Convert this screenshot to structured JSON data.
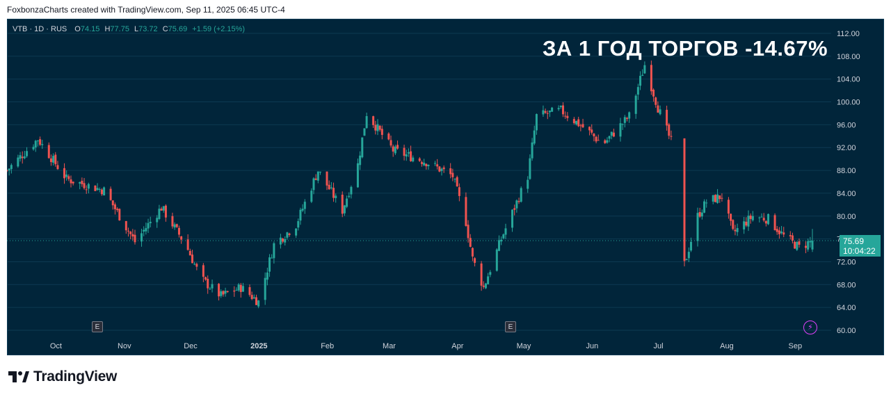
{
  "caption": "FoxbonzaCharts created with TradingView.com, Sep 11, 2025 06:45 UTC-4",
  "legend": {
    "symbol": "VTB · 1D · RUS",
    "open_label": "O",
    "open": "74.15",
    "high_label": "H",
    "high": "77.75",
    "low_label": "L",
    "low": "73.72",
    "close_label": "C",
    "close": "75.69",
    "change": "+1.59 (+2.15%)"
  },
  "headline": "ЗА 1 ГОД ТОРГОВ -14.67%",
  "price_tag": {
    "price": "75.69",
    "countdown": "10:04:22"
  },
  "earnings_marker": "E",
  "footer": {
    "brand": "TradingView"
  },
  "colors": {
    "up": "#26a69a",
    "down": "#ef5350",
    "background": "#01253a",
    "grid": "#0d3a52"
  },
  "icons": [
    "earnings-icon",
    "lightning-icon",
    "tradingview-logo-icon"
  ],
  "chart_data": {
    "type": "candlestick",
    "title": "",
    "xlabel": "",
    "ylabel": "",
    "ylim": [
      60,
      113
    ],
    "yticks": [
      "112.00",
      "108.00",
      "104.00",
      "100.00",
      "96.00",
      "92.00",
      "88.00",
      "84.00",
      "80.00",
      "76.00",
      "72.00",
      "68.00",
      "64.00",
      "60.00"
    ],
    "xticks": [
      "Oct",
      "Nov",
      "Dec",
      "2025",
      "Feb",
      "Mar",
      "Apr",
      "May",
      "Jun",
      "Jul",
      "Aug",
      "Sep"
    ],
    "last_price": 75.69,
    "path_date_range": [
      "2024-09-11",
      "2025-09-11"
    ],
    "path": [
      {
        "date": "2024-09-11",
        "close": 88.0
      },
      {
        "date": "2024-09-25",
        "close": 93.5
      },
      {
        "date": "2024-10-08",
        "close": 86.5
      },
      {
        "date": "2024-10-25",
        "close": 84.5
      },
      {
        "date": "2024-11-01",
        "close": 80.0
      },
      {
        "date": "2024-11-08",
        "close": 75.5
      },
      {
        "date": "2024-11-20",
        "close": 81.5
      },
      {
        "date": "2024-12-01",
        "close": 75.0
      },
      {
        "date": "2024-12-08",
        "close": 69.0
      },
      {
        "date": "2024-12-17",
        "close": 66.0
      },
      {
        "date": "2024-12-26",
        "close": 67.5
      },
      {
        "date": "2025-01-03",
        "close": 65.0
      },
      {
        "date": "2025-01-10",
        "close": 75.0
      },
      {
        "date": "2025-01-20",
        "close": 78.5
      },
      {
        "date": "2025-01-30",
        "close": 88.0
      },
      {
        "date": "2025-02-10",
        "close": 81.0
      },
      {
        "date": "2025-02-17",
        "close": 89.0
      },
      {
        "date": "2025-02-21",
        "close": 98.0
      },
      {
        "date": "2025-03-05",
        "close": 91.5
      },
      {
        "date": "2025-03-20",
        "close": 89.5
      },
      {
        "date": "2025-04-01",
        "close": 87.0
      },
      {
        "date": "2025-04-07",
        "close": 79.0
      },
      {
        "date": "2025-04-10",
        "close": 72.5
      },
      {
        "date": "2025-04-15",
        "close": 67.5
      },
      {
        "date": "2025-04-23",
        "close": 76.0
      },
      {
        "date": "2025-05-05",
        "close": 87.0
      },
      {
        "date": "2025-05-09",
        "close": 97.5
      },
      {
        "date": "2025-05-20",
        "close": 98.5
      },
      {
        "date": "2025-06-01",
        "close": 95.0
      },
      {
        "date": "2025-06-08",
        "close": 92.5
      },
      {
        "date": "2025-06-20",
        "close": 97.5
      },
      {
        "date": "2025-06-27",
        "close": 106.5
      },
      {
        "date": "2025-07-03",
        "close": 99.0
      },
      {
        "date": "2025-07-09",
        "close": 93.0
      },
      {
        "date": "2025-07-15",
        "close": 71.5
      },
      {
        "date": "2025-07-21",
        "close": 80.0
      },
      {
        "date": "2025-07-25",
        "close": 82.5
      },
      {
        "date": "2025-08-01",
        "close": 83.5
      },
      {
        "date": "2025-08-06",
        "close": 77.0
      },
      {
        "date": "2025-08-15",
        "close": 80.0
      },
      {
        "date": "2025-08-22",
        "close": 79.5
      },
      {
        "date": "2025-08-29",
        "close": 76.5
      },
      {
        "date": "2025-09-05",
        "close": 74.5
      },
      {
        "date": "2025-09-11",
        "close": 75.69
      }
    ],
    "gap_date_range": [
      "2025-07-10",
      "2025-07-14"
    ],
    "grid": true
  }
}
